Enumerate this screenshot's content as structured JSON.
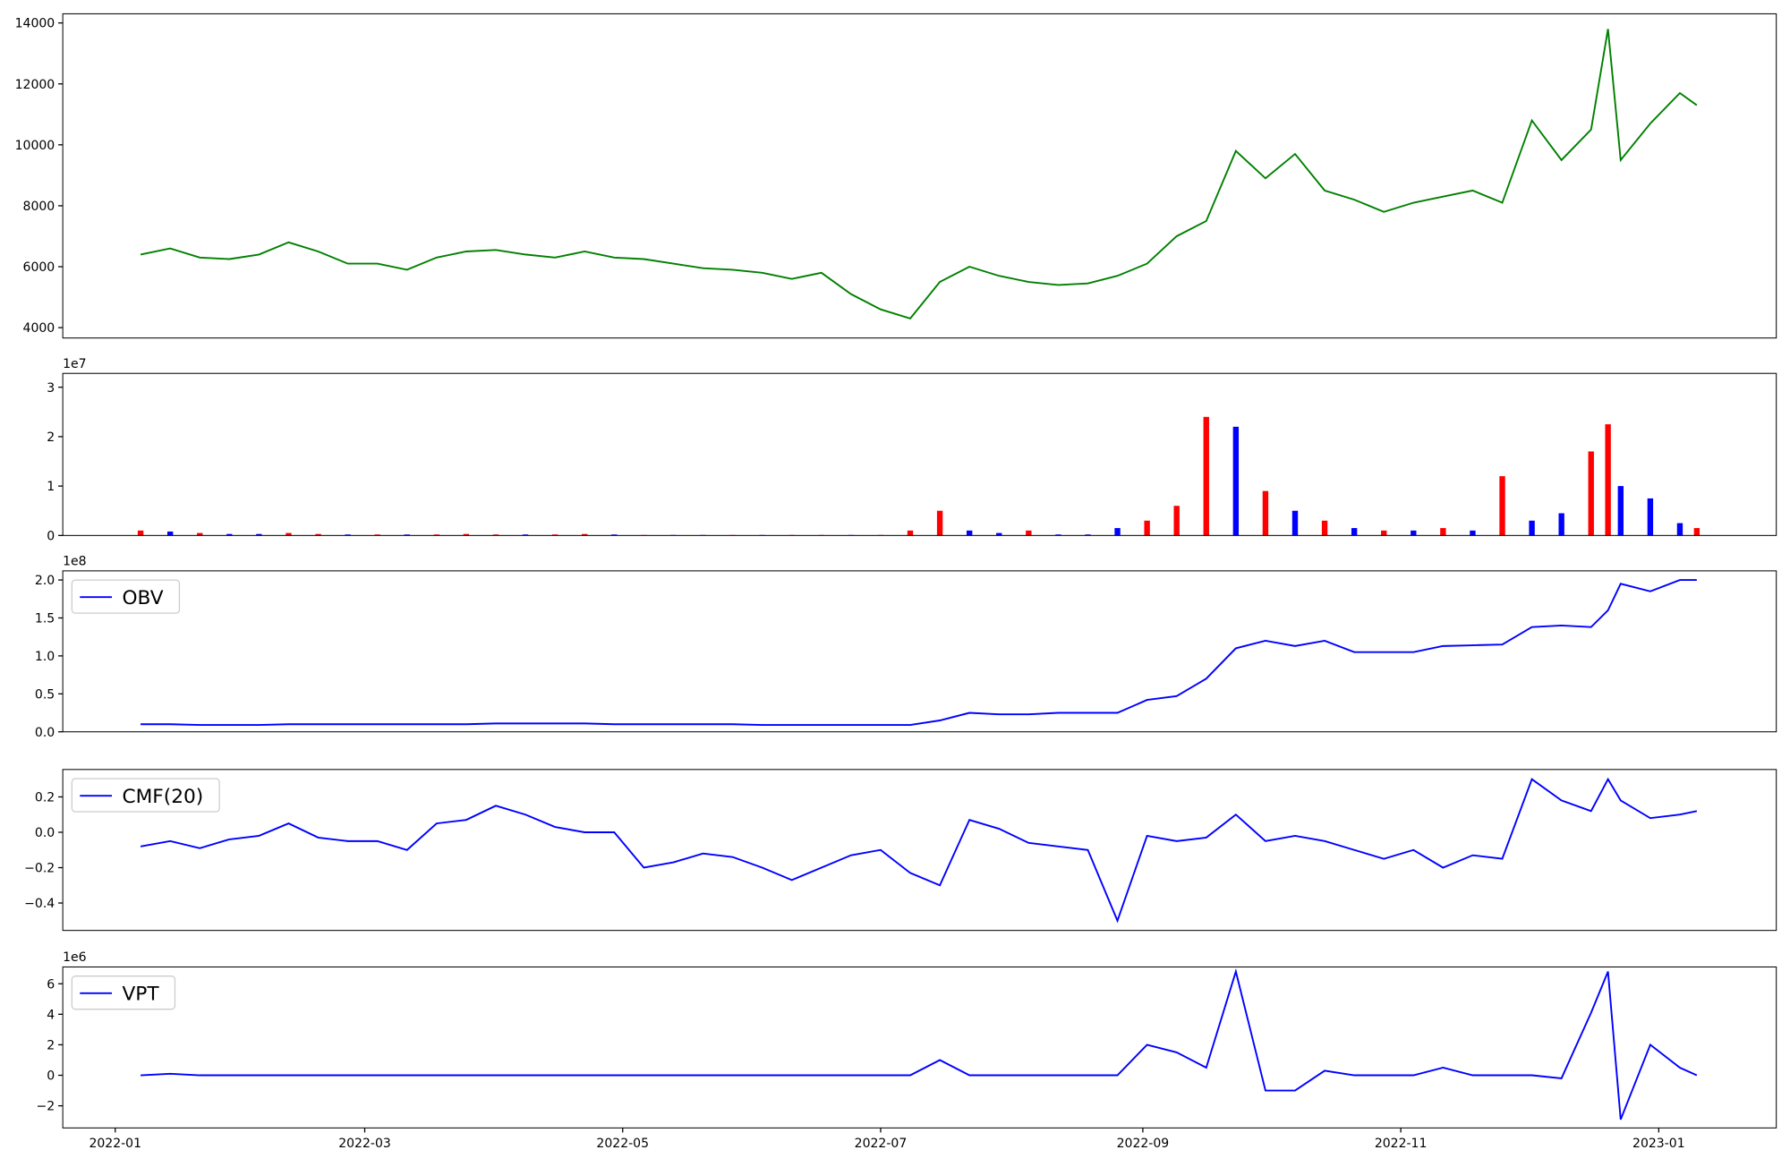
{
  "chart_data": [
    {
      "type": "line",
      "xlim": [
        -12.4,
        392.8
      ],
      "ylim": [
        3660,
        14300
      ],
      "yticks": [
        4000,
        6000,
        8000,
        10000,
        12000,
        14000
      ],
      "x": [
        6,
        13,
        20,
        27,
        34,
        41,
        48,
        55,
        62,
        69,
        76,
        83,
        90,
        97,
        104,
        111,
        118,
        125,
        132,
        139,
        146,
        153,
        160,
        167,
        174,
        181,
        188,
        195,
        202,
        209,
        216,
        223,
        230,
        237,
        244,
        251,
        258,
        265,
        272,
        279,
        286,
        293,
        300,
        307,
        314,
        321,
        328,
        335,
        342,
        349,
        353,
        356,
        363,
        370,
        374
      ],
      "series": [
        {
          "color": "#008000",
          "values": [
            6400,
            6600,
            6300,
            6250,
            6400,
            6800,
            6500,
            6100,
            6100,
            5900,
            6300,
            6500,
            6550,
            6400,
            6300,
            6500,
            6300,
            6250,
            6100,
            5950,
            5900,
            5800,
            5600,
            5800,
            5100,
            4600,
            4300,
            5500,
            6000,
            5700,
            5500,
            5400,
            5450,
            5700,
            6100,
            7000,
            7500,
            9800,
            8900,
            9700,
            8500,
            8200,
            7800,
            8100,
            8300,
            8500,
            8100,
            10800,
            9500,
            10500,
            13800,
            9500,
            10700,
            11700,
            11300
          ]
        }
      ]
    },
    {
      "type": "bar",
      "offset_label": "1e7",
      "xlim": [
        -12.4,
        392.8
      ],
      "ylim": [
        0,
        3.28
      ],
      "yticks": [
        0,
        1,
        2,
        3
      ],
      "x": [
        6,
        13,
        20,
        27,
        34,
        41,
        48,
        55,
        62,
        69,
        76,
        83,
        90,
        97,
        104,
        111,
        118,
        125,
        132,
        139,
        146,
        153,
        160,
        167,
        174,
        181,
        188,
        195,
        202,
        209,
        216,
        223,
        230,
        237,
        244,
        251,
        258,
        265,
        272,
        279,
        286,
        293,
        300,
        307,
        314,
        321,
        328,
        335,
        342,
        349,
        353,
        356,
        363,
        370,
        374
      ],
      "series": [
        {
          "color": "#ff0000",
          "values": [
            0.1,
            null,
            0.05,
            null,
            null,
            0.05,
            0.03,
            null,
            0.02,
            null,
            0.02,
            0.03,
            0.02,
            null,
            0.02,
            0.03,
            null,
            0.01,
            null,
            null,
            0.01,
            null,
            0.01,
            0.01,
            null,
            0.01,
            0.1,
            0.5,
            null,
            null,
            0.1,
            null,
            null,
            null,
            0.3,
            0.6,
            2.4,
            null,
            0.9,
            null,
            0.3,
            null,
            0.1,
            null,
            0.15,
            null,
            1.2,
            null,
            null,
            1.7,
            2.25,
            null,
            null,
            null,
            0.15
          ]
        },
        {
          "color": "#0000ff",
          "values": [
            null,
            0.08,
            null,
            0.03,
            0.03,
            null,
            null,
            0.02,
            null,
            0.02,
            null,
            null,
            null,
            0.02,
            null,
            null,
            0.02,
            null,
            0.01,
            0.01,
            null,
            0.01,
            null,
            null,
            0.01,
            null,
            null,
            null,
            0.1,
            0.05,
            null,
            0.02,
            0.02,
            0.15,
            null,
            null,
            null,
            2.2,
            null,
            0.5,
            null,
            0.15,
            null,
            0.1,
            null,
            0.1,
            null,
            0.3,
            0.45,
            null,
            null,
            1.0,
            0.75,
            0.25,
            null
          ]
        }
      ]
    },
    {
      "type": "line",
      "offset_label": "1e8",
      "legend": "upper left",
      "xlim": [
        -12.4,
        392.8
      ],
      "ylim": [
        0,
        2.12
      ],
      "yticks": [
        {
          "value": 0,
          "label": "0.0"
        },
        0.5,
        {
          "value": 1,
          "label": "1.0"
        },
        1.5,
        {
          "value": 2,
          "label": "2.0"
        }
      ],
      "x": [
        6,
        13,
        20,
        27,
        34,
        41,
        48,
        55,
        62,
        69,
        76,
        83,
        90,
        97,
        104,
        111,
        118,
        125,
        132,
        139,
        146,
        153,
        160,
        167,
        174,
        181,
        188,
        195,
        202,
        209,
        216,
        223,
        230,
        237,
        244,
        251,
        258,
        265,
        272,
        279,
        286,
        293,
        300,
        307,
        314,
        321,
        328,
        335,
        342,
        349,
        353,
        356,
        363,
        370,
        374
      ],
      "series": [
        {
          "name": "OBV",
          "color": "#0000ff",
          "values": [
            0.1,
            0.1,
            0.09,
            0.09,
            0.09,
            0.1,
            0.1,
            0.1,
            0.1,
            0.1,
            0.1,
            0.1,
            0.11,
            0.11,
            0.11,
            0.11,
            0.1,
            0.1,
            0.1,
            0.1,
            0.1,
            0.09,
            0.09,
            0.09,
            0.09,
            0.09,
            0.09,
            0.15,
            0.25,
            0.23,
            0.23,
            0.25,
            0.25,
            0.25,
            0.42,
            0.47,
            0.7,
            1.1,
            1.2,
            1.13,
            1.2,
            1.05,
            1.05,
            1.05,
            1.13,
            1.14,
            1.15,
            1.38,
            1.4,
            1.38,
            1.6,
            1.95,
            1.85,
            2.0,
            2.0
          ]
        }
      ]
    },
    {
      "type": "line",
      "legend": "upper left",
      "xlim": [
        -12.4,
        392.8
      ],
      "ylim": [
        -0.555,
        0.355
      ],
      "yticks": [
        {
          "value": -0.4,
          "label": "−0.4"
        },
        {
          "value": -0.2,
          "label": "−0.2"
        },
        {
          "value": 0,
          "label": "0.0"
        },
        0.2
      ],
      "x": [
        6,
        13,
        20,
        27,
        34,
        41,
        48,
        55,
        62,
        69,
        76,
        83,
        90,
        97,
        104,
        111,
        118,
        125,
        132,
        139,
        146,
        153,
        160,
        167,
        174,
        181,
        188,
        195,
        202,
        209,
        216,
        223,
        230,
        237,
        244,
        251,
        258,
        265,
        272,
        279,
        286,
        293,
        300,
        307,
        314,
        321,
        328,
        335,
        342,
        349,
        353,
        356,
        363,
        370,
        374
      ],
      "series": [
        {
          "name": "CMF(20)",
          "color": "#0000ff",
          "values": [
            -0.08,
            -0.05,
            -0.09,
            -0.04,
            -0.02,
            0.05,
            -0.03,
            -0.05,
            -0.05,
            -0.1,
            0.05,
            0.07,
            0.15,
            0.1,
            0.03,
            0,
            0,
            -0.2,
            -0.17,
            -0.12,
            -0.14,
            -0.2,
            -0.27,
            -0.2,
            -0.13,
            -0.1,
            -0.23,
            -0.3,
            0.07,
            0.02,
            -0.06,
            -0.08,
            -0.1,
            -0.5,
            -0.02,
            -0.05,
            -0.03,
            0.1,
            -0.05,
            -0.02,
            -0.05,
            -0.1,
            -0.15,
            -0.1,
            -0.2,
            -0.13,
            -0.15,
            0.3,
            0.18,
            0.12,
            0.3,
            0.18,
            0.08,
            0.1,
            0.12
          ]
        }
      ]
    },
    {
      "type": "line",
      "offset_label": "1e6",
      "legend": "upper left",
      "xlim": [
        -12.4,
        392.8
      ],
      "ylim": [
        -3.45,
        7.1
      ],
      "yticks": [
        {
          "value": -2,
          "label": "−2"
        },
        0,
        2,
        4,
        6
      ],
      "xticks": [
        {
          "value": 0,
          "label": "2022-01"
        },
        {
          "value": 59,
          "label": "2022-03"
        },
        {
          "value": 120,
          "label": "2022-05"
        },
        {
          "value": 181,
          "label": "2022-07"
        },
        {
          "value": 243,
          "label": "2022-09"
        },
        {
          "value": 304,
          "label": "2022-11"
        },
        {
          "value": 365,
          "label": "2023-01"
        }
      ],
      "x": [
        6,
        13,
        20,
        27,
        34,
        41,
        48,
        55,
        62,
        69,
        76,
        83,
        90,
        97,
        104,
        111,
        118,
        125,
        132,
        139,
        146,
        153,
        160,
        167,
        174,
        181,
        188,
        195,
        202,
        209,
        216,
        223,
        230,
        237,
        244,
        251,
        258,
        265,
        272,
        279,
        286,
        293,
        300,
        307,
        314,
        321,
        328,
        335,
        342,
        349,
        353,
        356,
        363,
        370,
        374
      ],
      "series": [
        {
          "name": "VPT",
          "color": "#0000ff",
          "values": [
            0,
            0.1,
            0,
            0,
            0,
            0,
            0,
            0,
            0,
            0,
            0,
            0,
            0,
            0,
            0,
            0,
            0,
            0,
            0,
            0,
            0,
            0,
            0,
            0,
            0,
            0,
            0,
            1.0,
            0,
            0,
            0,
            0,
            0,
            0,
            2,
            1.5,
            0.5,
            6.8,
            -1,
            -1,
            0.3,
            0,
            0,
            0,
            0.5,
            0,
            0,
            0,
            -0.2,
            4.1,
            6.8,
            -2.9,
            2,
            0.5,
            0
          ]
        }
      ]
    }
  ]
}
